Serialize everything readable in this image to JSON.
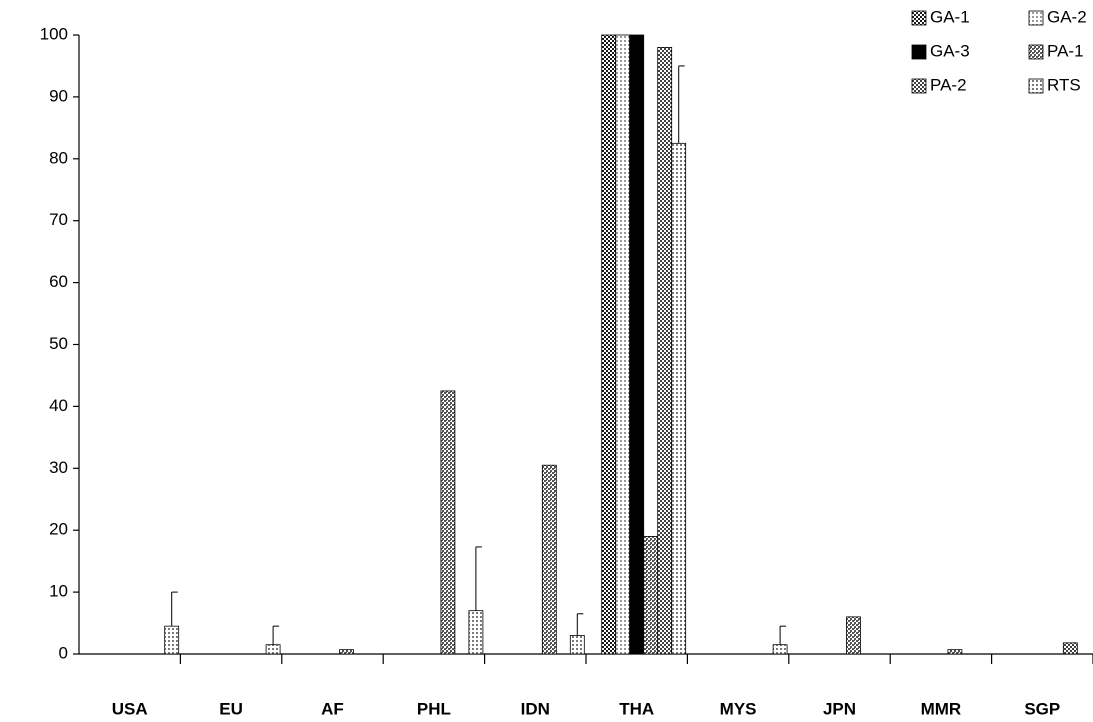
{
  "chart_data": {
    "type": "bar",
    "categories": [
      "USA",
      "EU",
      "AF",
      "PHL",
      "IDN",
      "THA",
      "MYS",
      "JPN",
      "MMR",
      "SGP"
    ],
    "series": [
      {
        "name": "GA-1",
        "color": "#1a1a1a",
        "values": [
          null,
          null,
          null,
          null,
          null,
          100,
          null,
          null,
          null,
          null
        ]
      },
      {
        "name": "GA-2",
        "color": "#9a9a9a",
        "values": [
          null,
          null,
          null,
          null,
          null,
          100,
          null,
          null,
          null,
          null
        ]
      },
      {
        "name": "GA-3",
        "color": "#000000",
        "values": [
          null,
          null,
          null,
          null,
          null,
          100,
          null,
          null,
          null,
          null
        ]
      },
      {
        "name": "PA-1",
        "color": "#555555",
        "values": [
          null,
          null,
          0.7,
          42.5,
          30.5,
          19,
          null,
          6,
          0.7,
          null
        ]
      },
      {
        "name": "PA-2",
        "color": "#404040",
        "values": [
          null,
          null,
          null,
          null,
          null,
          98,
          null,
          null,
          null,
          1.8
        ]
      },
      {
        "name": "RTS",
        "color": "#7a7a7a",
        "values": [
          4.5,
          1.5,
          null,
          7,
          3,
          82.5,
          1.5,
          null,
          null,
          null
        ],
        "errors": [
          5.5,
          3,
          null,
          10.3,
          3.5,
          12.5,
          3,
          null,
          null,
          null
        ]
      }
    ],
    "ylim": [
      0,
      100
    ],
    "yticks": [
      0,
      10,
      20,
      30,
      40,
      50,
      60,
      70,
      80,
      90,
      100
    ],
    "grid": false,
    "legend": "top-right"
  }
}
